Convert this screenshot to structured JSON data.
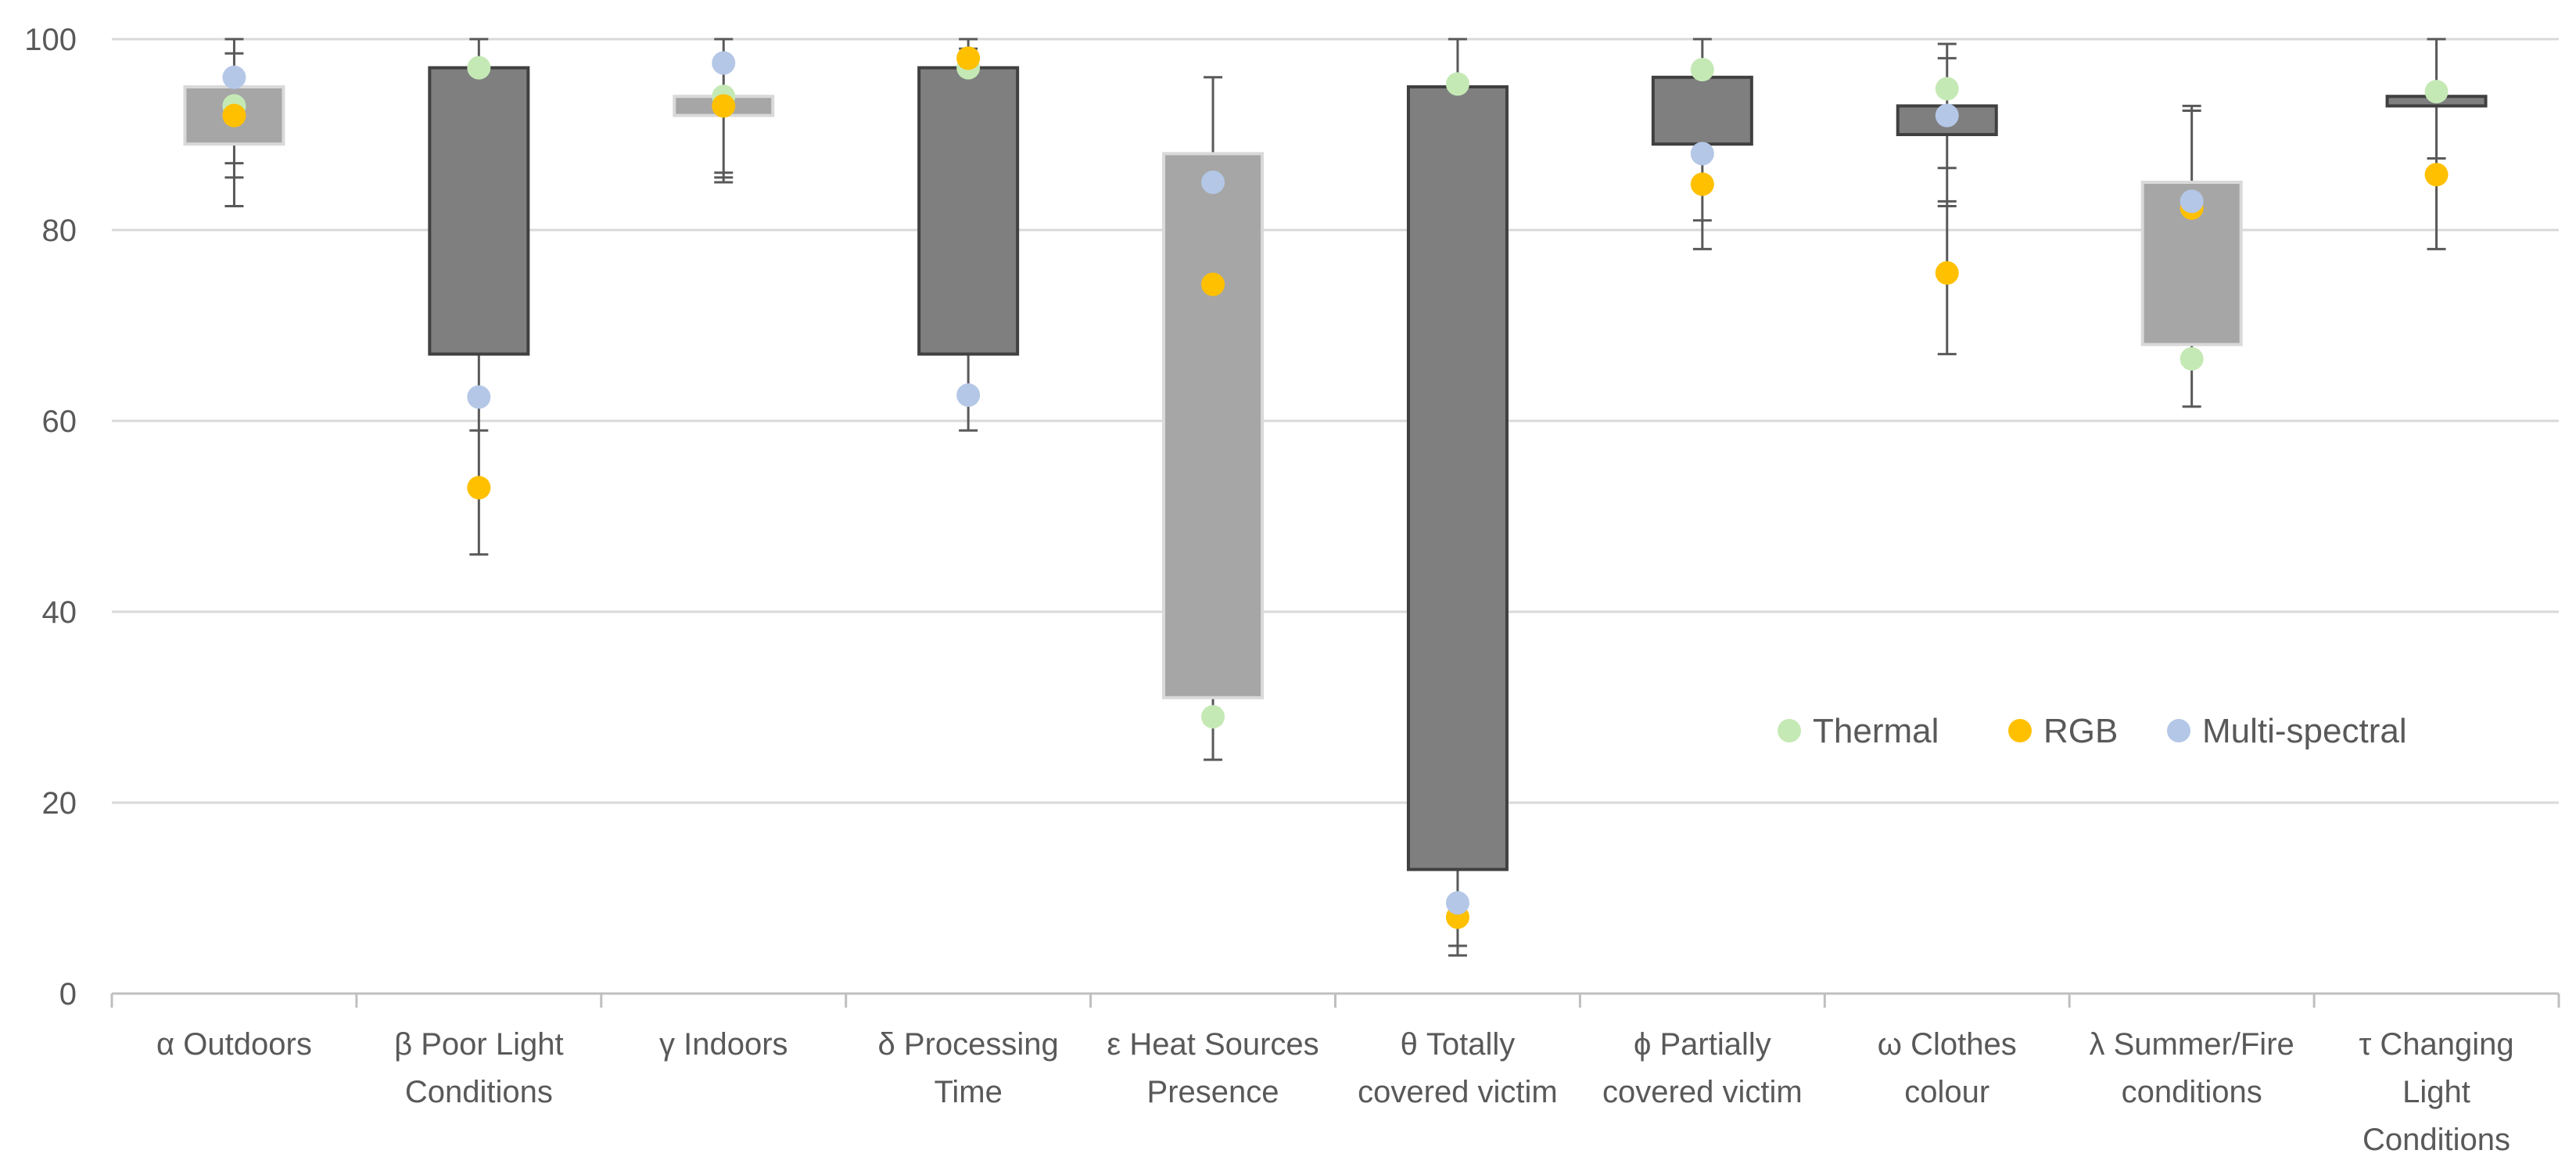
{
  "chart_data": {
    "type": "box",
    "title": "",
    "xlabel": "",
    "ylabel": "",
    "ylim": [
      0,
      100
    ],
    "yticks": [
      0,
      20,
      40,
      60,
      80,
      100
    ],
    "ytick_labels": [
      "0",
      "20",
      "40",
      "60",
      "80",
      "100"
    ],
    "grid": true,
    "legend_position": "right-middle",
    "colors": {
      "gridline": "#d9d9d9",
      "axis": "#bfbfbf",
      "whisker": "#595959",
      "box_dark": "#7f7f7f",
      "box_dark_edge": "#404040",
      "box_light": "#a6a6a6",
      "box_light_edge": "#d9d9d9"
    },
    "categories": [
      {
        "label_lines": [
          "α Outdoors"
        ],
        "low": 82.5,
        "q1": 89,
        "q3": 95,
        "high": 100,
        "style": "light",
        "caps": [
          82.5,
          85.5,
          87,
          98.5,
          100
        ]
      },
      {
        "label_lines": [
          "β Poor Light",
          "Conditions"
        ],
        "low": 46,
        "q1": 67,
        "q3": 97,
        "high": 100,
        "style": "dark",
        "caps": [
          46,
          59,
          100
        ]
      },
      {
        "label_lines": [
          "γ Indoors"
        ],
        "low": 85,
        "q1": 92,
        "q3": 94,
        "high": 100,
        "style": "light",
        "caps": [
          85,
          85.5,
          86,
          100
        ]
      },
      {
        "label_lines": [
          "δ Processing",
          "Time"
        ],
        "low": 59,
        "q1": 67,
        "q3": 97,
        "high": 100,
        "style": "dark",
        "caps": [
          59,
          99,
          100
        ]
      },
      {
        "label_lines": [
          "ε Heat Sources",
          "Presence"
        ],
        "low": 24.5,
        "q1": 31,
        "q3": 88,
        "high": 96,
        "style": "light",
        "caps": [
          24.5,
          96
        ]
      },
      {
        "label_lines": [
          "θ Totally",
          "covered victim"
        ],
        "low": 4,
        "q1": 13,
        "q3": 95,
        "high": 100,
        "style": "dark",
        "caps": [
          4,
          5,
          100
        ]
      },
      {
        "label_lines": [
          "ϕ Partially",
          "covered victim"
        ],
        "low": 78,
        "q1": 89,
        "q3": 96,
        "high": 100,
        "style": "dark",
        "caps": [
          78,
          81,
          100
        ]
      },
      {
        "label_lines": [
          "ω Clothes",
          "colour"
        ],
        "low": 67,
        "q1": 90,
        "q3": 93,
        "high": 99.5,
        "style": "dark",
        "caps": [
          67,
          82.5,
          83,
          86.5,
          98,
          99.5
        ]
      },
      {
        "label_lines": [
          "λ Summer/Fire",
          "conditions"
        ],
        "low": 61.5,
        "q1": 68,
        "q3": 85,
        "high": 93,
        "style": "light",
        "caps": [
          61.5,
          92.5,
          93
        ]
      },
      {
        "label_lines": [
          "τ Changing",
          "Light",
          "Conditions"
        ],
        "low": 78,
        "q1": 93,
        "q3": 94,
        "high": 100,
        "style": "dark",
        "caps": [
          78,
          87.5,
          100
        ]
      }
    ],
    "series": [
      {
        "name": "Thermal",
        "color": "#c5e9b5",
        "values": [
          93,
          97,
          94,
          97,
          29,
          95.3,
          96.8,
          94.8,
          66.5,
          94.5
        ]
      },
      {
        "name": "RGB",
        "color": "#ffc000",
        "values": [
          92,
          53,
          93,
          98,
          74.3,
          8,
          84.8,
          75.5,
          82.3,
          85.8
        ]
      },
      {
        "name": "Multi-spectral",
        "color": "#b4c7e7",
        "values": [
          96,
          62.5,
          97.5,
          62.7,
          85,
          9.5,
          88,
          92,
          83,
          null
        ]
      }
    ]
  }
}
